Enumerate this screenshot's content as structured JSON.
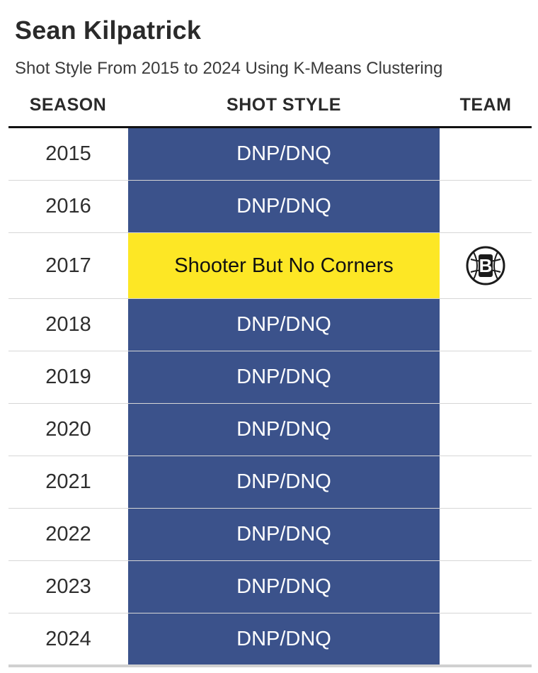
{
  "header": {
    "title": "Sean Kilpatrick",
    "subtitle": "Shot Style From 2015 to 2024 Using K-Means Clustering"
  },
  "columns": {
    "season": "SEASON",
    "shot_style": "SHOT STYLE",
    "team": "TEAM"
  },
  "colors": {
    "dnp": "#3b528b",
    "shooter_but_no_corners": "#fde725",
    "dnp_text": "#ffffff",
    "shooter_text": "#111111",
    "team_logo": "#1b1b1b"
  },
  "chart_data": {
    "type": "table",
    "title": "Sean Kilpatrick",
    "subtitle": "Shot Style From 2015 to 2024 Using K-Means Clustering",
    "columns": [
      "SEASON",
      "SHOT STYLE",
      "TEAM"
    ],
    "rows": [
      {
        "season": "2015",
        "shot_style": "DNP/DNQ",
        "team_logo": ""
      },
      {
        "season": "2016",
        "shot_style": "DNP/DNQ",
        "team_logo": ""
      },
      {
        "season": "2017",
        "shot_style": "Shooter But No Corners",
        "team_logo": "brooklyn-nets-logo-icon"
      },
      {
        "season": "2018",
        "shot_style": "DNP/DNQ",
        "team_logo": ""
      },
      {
        "season": "2019",
        "shot_style": "DNP/DNQ",
        "team_logo": ""
      },
      {
        "season": "2020",
        "shot_style": "DNP/DNQ",
        "team_logo": ""
      },
      {
        "season": "2021",
        "shot_style": "DNP/DNQ",
        "team_logo": ""
      },
      {
        "season": "2022",
        "shot_style": "DNP/DNQ",
        "team_logo": ""
      },
      {
        "season": "2023",
        "shot_style": "DNP/DNQ",
        "team_logo": ""
      },
      {
        "season": "2024",
        "shot_style": "DNP/DNQ",
        "team_logo": ""
      }
    ]
  }
}
